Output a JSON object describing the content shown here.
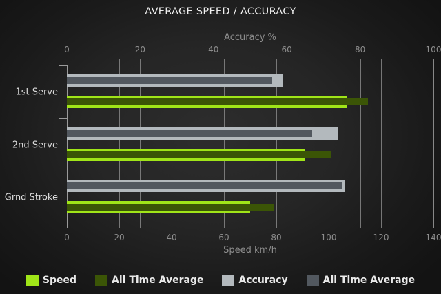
{
  "title": "AVERAGE SPEED / ACCURACY",
  "colors": {
    "background_center": "#2d2d2d",
    "background_edge": "#131313",
    "speed": "#a0e518",
    "speed_all_time_average": "#3b5506",
    "accuracy": "#b3b9bd",
    "accuracy_all_time_average": "#52585f",
    "gridline": "#8d8d8d",
    "axis_text": "#8d8d8d",
    "category_text": "#dcdcdc",
    "title_text": "#efefef"
  },
  "chart_data": {
    "type": "bar",
    "orientation": "horizontal",
    "title": "AVERAGE SPEED / ACCURACY",
    "categories": [
      "1st Serve",
      "2nd Serve",
      "Grnd Stroke"
    ],
    "axes": {
      "top": {
        "label": "Accuracy %",
        "min": 0,
        "max": 100,
        "ticks": [
          0,
          20,
          40,
          60,
          80,
          100
        ]
      },
      "bottom": {
        "label": "Speed km/h",
        "min": 0,
        "max": 140,
        "ticks": [
          0,
          20,
          40,
          60,
          80,
          100,
          120,
          140
        ]
      }
    },
    "grid": true,
    "legend_position": "bottom",
    "series": [
      {
        "name": "Speed",
        "axis": "bottom",
        "role": "outer",
        "color": "#a0e518",
        "values": [
          107,
          91,
          70
        ]
      },
      {
        "name": "All Time Average",
        "axis": "bottom",
        "role": "inner",
        "color": "#3b5506",
        "values": [
          115,
          101,
          79
        ]
      },
      {
        "name": "Accuracy",
        "axis": "top",
        "role": "outer",
        "color": "#b3b9bd",
        "values": [
          59,
          74,
          76
        ]
      },
      {
        "name": "All Time Average",
        "axis": "top",
        "role": "inner",
        "color": "#52585f",
        "values": [
          56,
          67,
          75
        ]
      }
    ]
  }
}
